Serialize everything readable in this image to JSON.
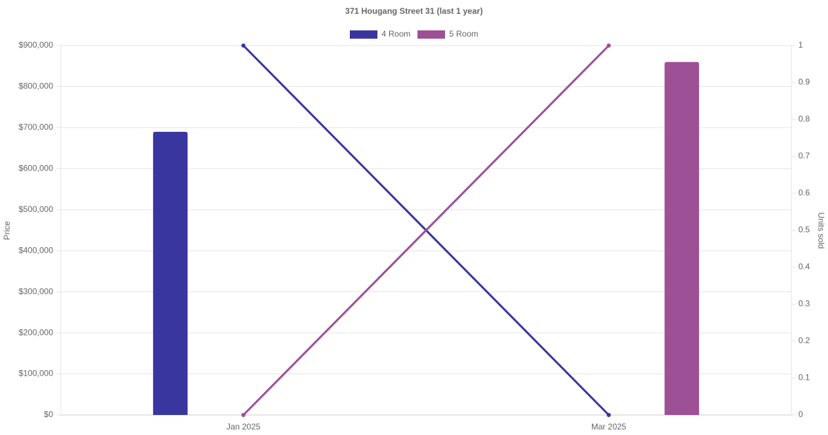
{
  "chart_data": {
    "type": "bar-line",
    "title": "371 Hougang Street 31 (last 1 year)",
    "categories": [
      "Jan 2025",
      "Mar 2025"
    ],
    "y_label": "Price",
    "y2_label": "Units sold",
    "series": [
      {
        "name": "4 Room",
        "color": "#3a36a0",
        "values": [
          690000,
          null
        ],
        "units_sold": [
          1,
          0
        ]
      },
      {
        "name": "5 Room",
        "color": "#9e5096",
        "values": [
          null,
          860000
        ],
        "units_sold": [
          0,
          1
        ]
      }
    ],
    "ylim": [
      0,
      900000
    ],
    "yticks": [
      {
        "value": 0,
        "label": "$0"
      },
      {
        "value": 100000,
        "label": "$100,000"
      },
      {
        "value": 200000,
        "label": "$200,000"
      },
      {
        "value": 300000,
        "label": "$300,000"
      },
      {
        "value": 400000,
        "label": "$400,000"
      },
      {
        "value": 500000,
        "label": "$500,000"
      },
      {
        "value": 600000,
        "label": "$600,000"
      },
      {
        "value": 700000,
        "label": "$700,000"
      },
      {
        "value": 800000,
        "label": "$800,000"
      },
      {
        "value": 900000,
        "label": "$900,000"
      }
    ],
    "y2lim": [
      0,
      1
    ],
    "y2ticks": [
      0,
      0.1,
      0.2,
      0.3,
      0.4,
      0.5,
      0.6,
      0.7,
      0.8,
      0.9,
      1
    ],
    "grid": true
  }
}
